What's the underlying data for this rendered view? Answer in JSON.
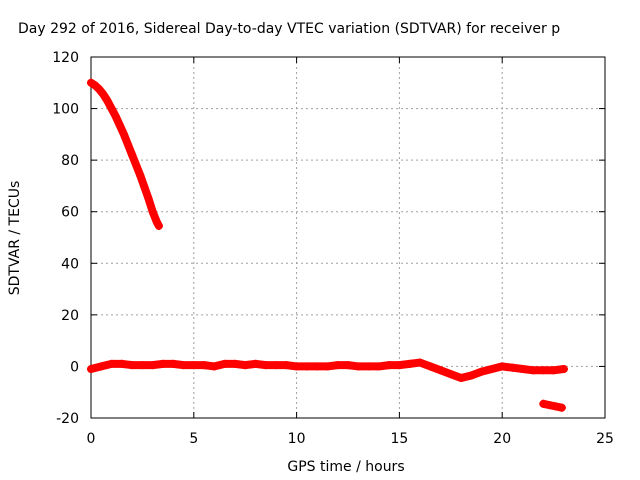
{
  "chart_data": {
    "type": "scatter",
    "title": "Day 292 of 2016, Sidereal Day-to-day VTEC variation (SDTVAR) for receiver p",
    "xlabel": "GPS time / hours",
    "ylabel": "SDTVAR / TECUs",
    "xlim": [
      0,
      25
    ],
    "ylim": [
      -20,
      120
    ],
    "xticks": [
      0,
      5,
      10,
      15,
      20,
      25
    ],
    "yticks": [
      -20,
      0,
      20,
      40,
      60,
      80,
      100,
      120
    ],
    "grid": true,
    "marker": "plus",
    "series_color": "#ff0000",
    "series": [
      {
        "segment": "early-high",
        "x": [
          0.0,
          0.2,
          0.4,
          0.6,
          0.8,
          1.0,
          1.2,
          1.4,
          1.6,
          1.8,
          2.0,
          2.2,
          2.4,
          2.6,
          2.8,
          3.0,
          3.2,
          3.3
        ],
        "y": [
          110,
          109,
          107.5,
          105.5,
          103,
          100,
          97,
          93.5,
          90,
          86,
          82,
          78,
          74,
          69.5,
          65,
          60,
          56,
          54.5
        ]
      },
      {
        "segment": "main-near-zero",
        "x": [
          0.0,
          0.5,
          1.0,
          1.5,
          2.0,
          2.5,
          3.0,
          3.5,
          4.0,
          4.5,
          5.0,
          5.5,
          6.0,
          6.5,
          7.0,
          7.5,
          8.0,
          8.5,
          9.0,
          9.5,
          10.0,
          10.5,
          11.0,
          11.5,
          12.0,
          12.5,
          13.0,
          13.5,
          14.0,
          14.5,
          15.0,
          15.5,
          16.0,
          16.5,
          17.0,
          17.5,
          18.0,
          18.5,
          19.0,
          19.5,
          20.0,
          20.5,
          21.0,
          21.5,
          22.0,
          22.5,
          23.0
        ],
        "y": [
          -1,
          0,
          1,
          1,
          0.5,
          0.5,
          0.5,
          1,
          1,
          0.5,
          0.5,
          0.5,
          0,
          1,
          1,
          0.5,
          1,
          0.5,
          0.5,
          0.5,
          0,
          0,
          0,
          0,
          0.5,
          0.5,
          0,
          0,
          0,
          0.5,
          0.5,
          1,
          1.5,
          0,
          -1.5,
          -3,
          -4.5,
          -3.5,
          -2,
          -1,
          0,
          -0.5,
          -1,
          -1.5,
          -1.5,
          -1.5,
          -1
        ]
      },
      {
        "segment": "late-low",
        "x": [
          22.0,
          22.3,
          22.6,
          22.9
        ],
        "y": [
          -14.5,
          -15,
          -15.5,
          -16
        ]
      }
    ]
  }
}
